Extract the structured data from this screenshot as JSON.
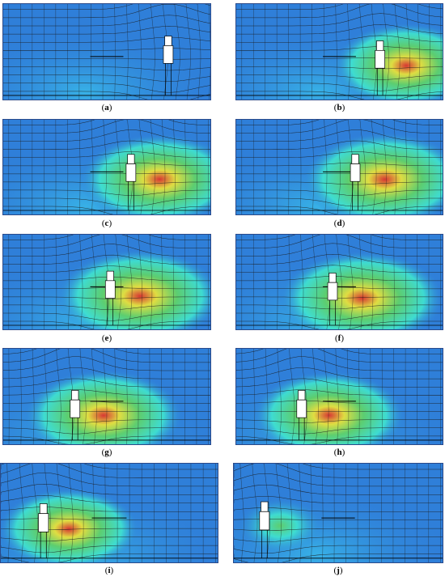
{
  "panels": [
    {
      "id": "a",
      "label": "a",
      "hot": 0.0,
      "hx": 0.8,
      "hy": 0.55
    },
    {
      "id": "b",
      "label": "b",
      "hot": 0.85,
      "hx": 0.7,
      "hy": 0.6
    },
    {
      "id": "c",
      "label": "c",
      "hot": 0.95,
      "hx": 0.62,
      "hy": 0.58
    },
    {
      "id": "d",
      "label": "d",
      "hot": 1.0,
      "hx": 0.58,
      "hy": 0.58
    },
    {
      "id": "e",
      "label": "e",
      "hot": 1.0,
      "hx": 0.52,
      "hy": 0.6
    },
    {
      "id": "f",
      "label": "f",
      "hot": 1.0,
      "hx": 0.47,
      "hy": 0.62
    },
    {
      "id": "g",
      "label": "g",
      "hot": 0.95,
      "hx": 0.35,
      "hy": 0.65
    },
    {
      "id": "h",
      "label": "h",
      "hot": 0.9,
      "hx": 0.32,
      "hy": 0.65
    },
    {
      "id": "i",
      "label": "i",
      "hot": 0.75,
      "hx": 0.2,
      "hy": 0.62
    },
    {
      "id": "j",
      "label": "j",
      "hot": 0.35,
      "hx": 0.15,
      "hy": 0.6
    }
  ],
  "colors": {
    "background_blue": "#2f7fd9",
    "light_blue": "#39b7e8",
    "cyan": "#3fe0d0",
    "green": "#5fd16a",
    "yellow": "#e8e13a",
    "red": "#e0332a",
    "streamline": "#1a1a1a"
  }
}
